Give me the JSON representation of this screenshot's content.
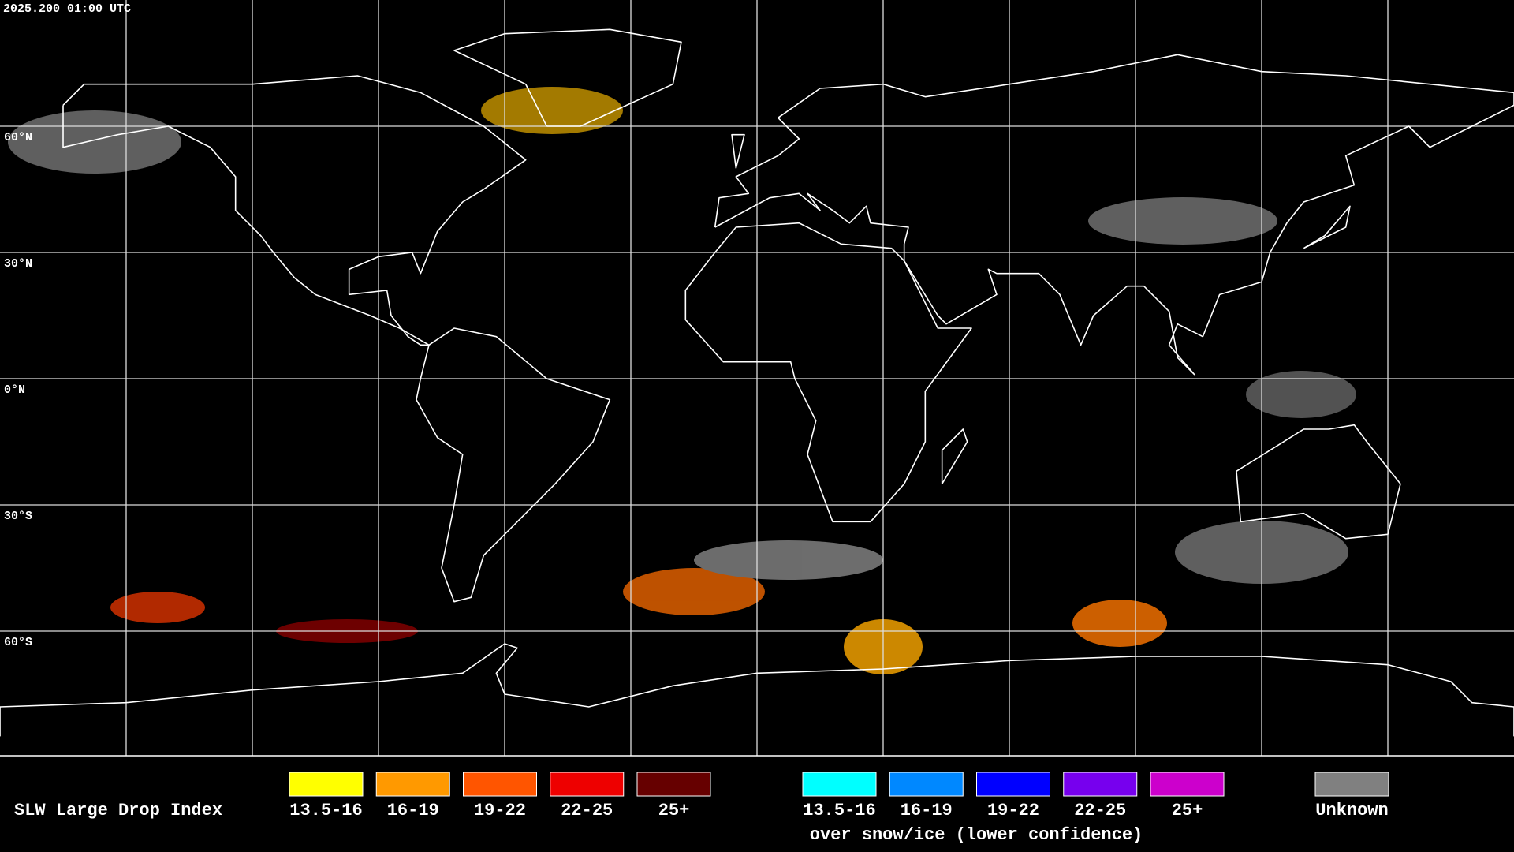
{
  "timestamp": "2025.200 01:00 UTC",
  "latitude_labels": [
    "60°N",
    "30°N",
    "0°N",
    "30°S",
    "60°S"
  ],
  "legend": {
    "title": "SLW Large Drop Index",
    "normal": [
      {
        "label": "13.5-16",
        "color": "#ffff00"
      },
      {
        "label": "16-19",
        "color": "#ff9900"
      },
      {
        "label": "19-22",
        "color": "#ff5500"
      },
      {
        "label": "22-25",
        "color": "#ee0000"
      },
      {
        "label": "25+",
        "color": "#660000"
      }
    ],
    "snow_ice": [
      {
        "label": "13.5-16",
        "color": "#00ffff"
      },
      {
        "label": "16-19",
        "color": "#0088ff"
      },
      {
        "label": "19-22",
        "color": "#0000ff"
      },
      {
        "label": "22-25",
        "color": "#7700ee"
      },
      {
        "label": "25+",
        "color": "#cc00cc"
      }
    ],
    "snow_ice_caption": "over snow/ice (lower confidence)",
    "unknown": {
      "label": "Unknown",
      "color": "#808080"
    }
  }
}
